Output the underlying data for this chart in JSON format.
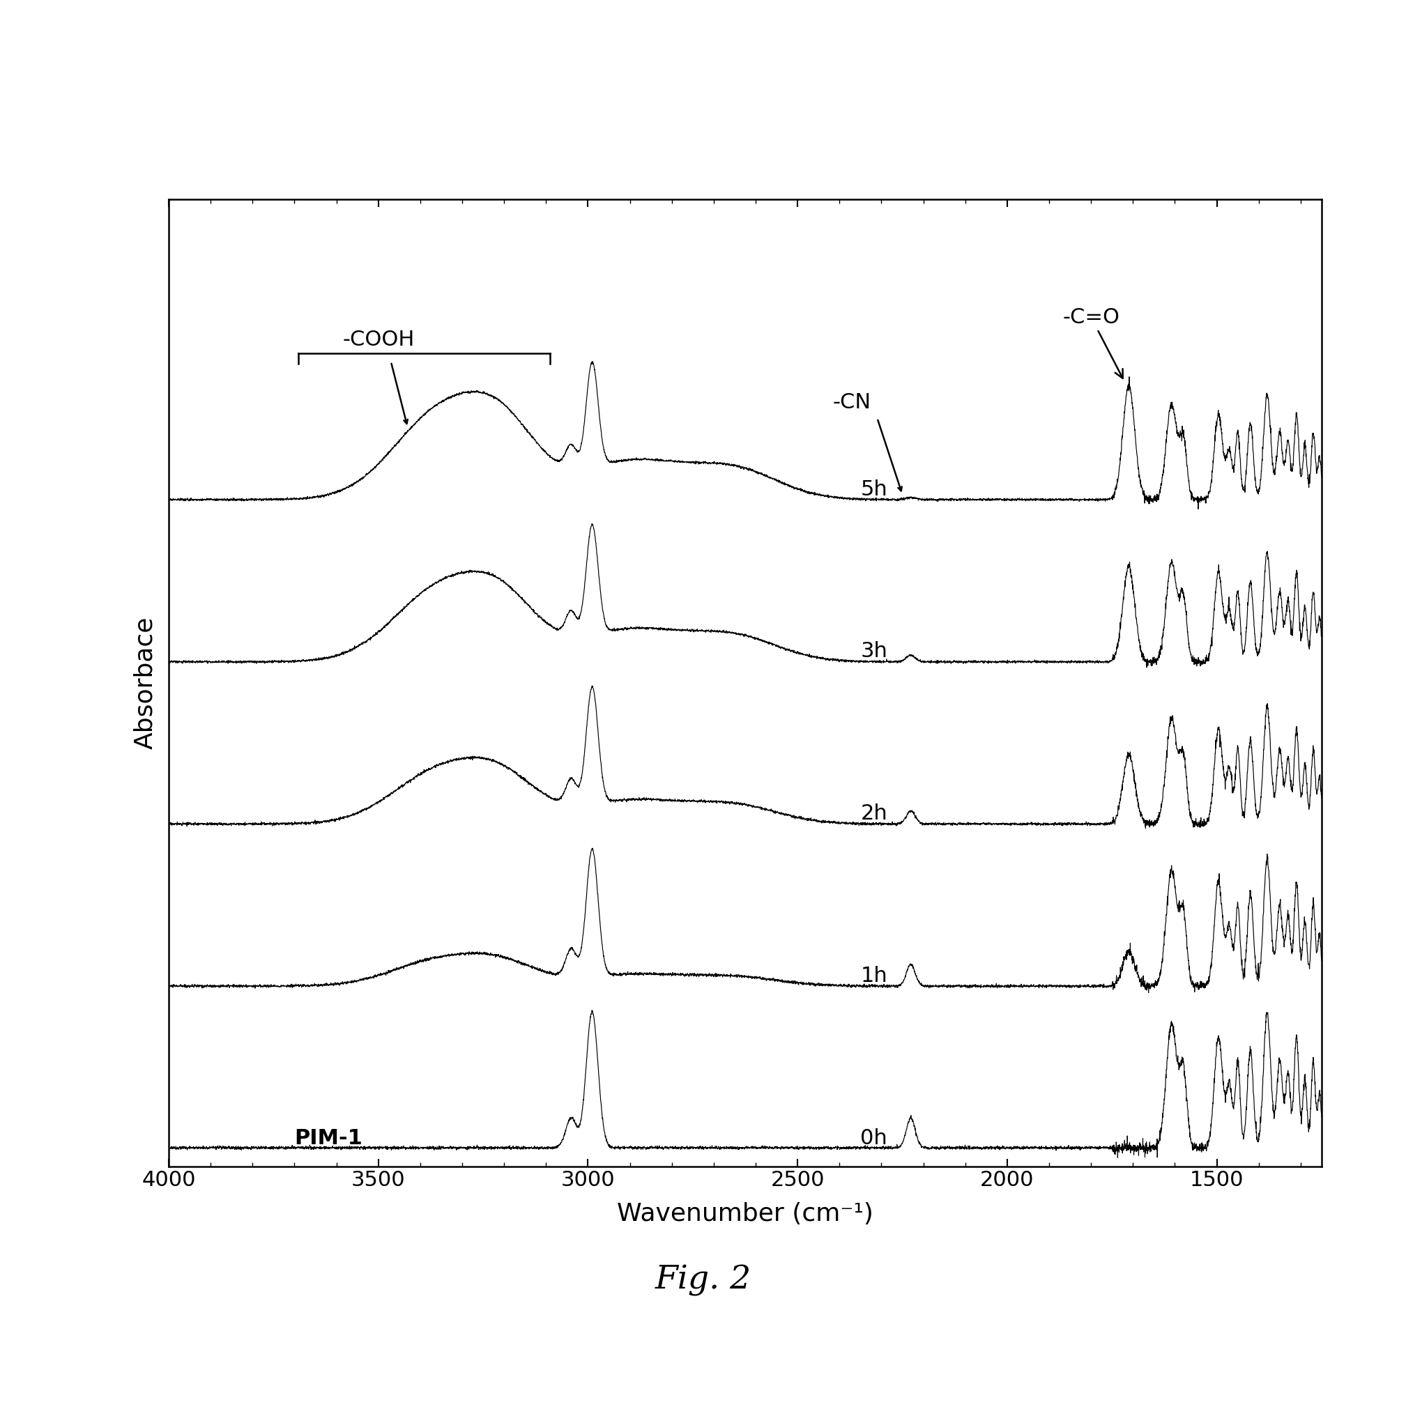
{
  "xlabel": "Wavenumber (cm⁻¹)",
  "ylabel": "Absorbace",
  "fig_caption": "Fig. 2",
  "xmin": 1250,
  "xmax": 4000,
  "xticks": [
    4000,
    3500,
    3000,
    2500,
    2000,
    1500
  ],
  "spectra_labels": [
    "0h",
    "1h",
    "2h",
    "3h",
    "5h"
  ],
  "pim1_label": "PIM-1",
  "offsets": [
    0.0,
    0.14,
    0.28,
    0.42,
    0.56
  ],
  "line_color": "#000000",
  "background_color": "#ffffff",
  "label_fontsize": 26,
  "tick_fontsize": 22,
  "annotation_fontsize": 22,
  "spec_label_fontsize": 22
}
